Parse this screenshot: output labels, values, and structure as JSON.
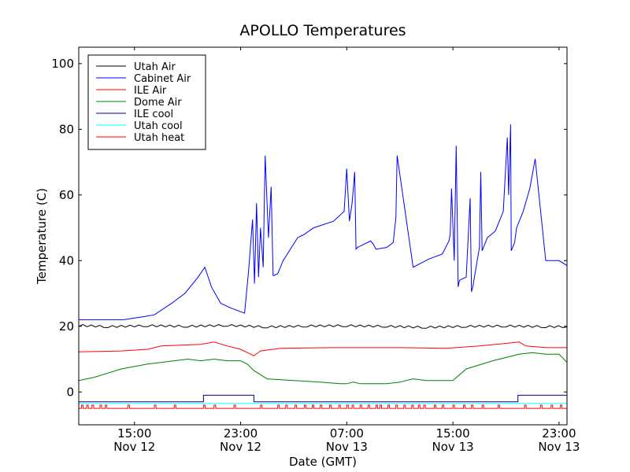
{
  "chart_data": {
    "type": "line",
    "title": "APOLLO Temperatures",
    "xlabel": "Date (GMT)",
    "ylabel": "Temperature (C)",
    "x_unit": "hours since Nov 12 00:00 GMT",
    "xlim": [
      10.8,
      47.6
    ],
    "ylim": [
      -10,
      105
    ],
    "yticks": [
      0,
      20,
      40,
      60,
      80,
      100
    ],
    "xticks": [
      {
        "value": 15,
        "time": "15:00",
        "date": "Nov 12"
      },
      {
        "value": 23,
        "time": "23:00",
        "date": "Nov 12"
      },
      {
        "value": 31,
        "time": "07:00",
        "date": "Nov 13"
      },
      {
        "value": 39,
        "time": "15:00",
        "date": "Nov 13"
      },
      {
        "value": 47,
        "time": "23:00",
        "date": "Nov 13"
      }
    ],
    "legend_position": "top-left",
    "series": [
      {
        "name": "Utah Air",
        "color": "#000000",
        "x": [
          10.8,
          13,
          16,
          19,
          22,
          25,
          28,
          31,
          34,
          37,
          40,
          43,
          46,
          47.6
        ],
        "y": [
          20.2,
          19.8,
          20.1,
          19.9,
          20.2,
          19.7,
          20.0,
          20.1,
          19.9,
          19.6,
          19.9,
          20.0,
          19.8,
          19.8
        ],
        "ripple": 0.4
      },
      {
        "name": "Cabinet Air",
        "color": "#0000ff",
        "x": [
          10.8,
          14.2,
          15.8,
          16.5,
          17.8,
          18.8,
          19.8,
          20.3,
          20.8,
          21.5,
          22.3,
          23.3,
          23.6,
          23.9,
          24.05,
          24.2,
          24.35,
          24.5,
          24.7,
          24.85,
          25.1,
          25.3,
          25.45,
          25.55,
          25.75,
          25.8,
          26.2,
          27.3,
          27.8,
          28.5,
          30.0,
          30.8,
          31.0,
          31.2,
          31.4,
          31.6,
          31.7,
          31.85,
          31.9,
          32.8,
          33.0,
          33.2,
          34.0,
          34.5,
          34.7,
          34.8,
          36.0,
          37.2,
          38.2,
          38.7,
          38.8,
          38.9,
          39.1,
          39.25,
          39.4,
          39.5,
          40.0,
          40.3,
          40.4,
          40.5,
          41.0,
          41.1,
          41.2,
          41.6,
          42.2,
          42.8,
          43.1,
          43.2,
          43.35,
          43.4,
          43.6,
          43.65,
          43.8,
          44.3,
          44.8,
          45.2,
          46.0,
          47.0,
          47.6
        ],
        "y": [
          22,
          22,
          23,
          23.5,
          27,
          30,
          35,
          38,
          32,
          27,
          25.5,
          24,
          37,
          52.5,
          33,
          57.5,
          35,
          50,
          38,
          72,
          47,
          62.5,
          35.5,
          35.5,
          36,
          36,
          40,
          47,
          48,
          50,
          52,
          55,
          68,
          52,
          57.5,
          67,
          43.5,
          44.2,
          44.2,
          46,
          45,
          43.5,
          44,
          45.5,
          53,
          72,
          38,
          40.5,
          42,
          46,
          48,
          62,
          40,
          75,
          32,
          34,
          35,
          59,
          30.5,
          32,
          44,
          67,
          43,
          47,
          49,
          55,
          77.5,
          60,
          81.5,
          43,
          45,
          45.5,
          50,
          55,
          62,
          71,
          40,
          40,
          38.5
        ]
      },
      {
        "name": "ILE Air",
        "color": "#ff0000",
        "x": [
          10.8,
          14,
          16,
          17,
          20,
          21,
          22,
          23,
          24,
          24.5,
          26,
          30,
          35,
          38.5,
          41,
          44,
          44.5,
          46,
          47.6
        ],
        "y": [
          12.2,
          12.5,
          13,
          14,
          14.5,
          15.2,
          14,
          13,
          11,
          12.5,
          13.3,
          13.5,
          13.5,
          13.3,
          14,
          15.2,
          14,
          13.5,
          13.5
        ]
      },
      {
        "name": "Dome Air",
        "color": "#008000",
        "x": [
          10.8,
          12,
          14,
          16,
          18,
          19,
          20,
          21,
          22,
          23,
          23.5,
          24,
          25,
          27,
          29,
          30.5,
          31,
          31.5,
          32,
          34,
          35,
          36,
          37,
          38,
          39,
          40,
          42,
          44,
          45,
          46,
          47,
          47.6
        ],
        "y": [
          3.5,
          4.5,
          7,
          8.5,
          9.5,
          10,
          9.5,
          10,
          9.5,
          9.5,
          8.5,
          6.5,
          4,
          3.5,
          3,
          2.5,
          2.5,
          3,
          2.5,
          2.5,
          3,
          4,
          3.5,
          3.5,
          3.5,
          7,
          9.5,
          11.5,
          12,
          11.5,
          11.5,
          9
        ]
      },
      {
        "name": "ILE cool",
        "color": "#000080",
        "x": [
          10.8,
          20.2,
          20.2,
          24.0,
          24.0,
          43.9,
          43.9,
          47.6
        ],
        "y": [
          -3,
          -3,
          -1,
          -1,
          -3,
          -3,
          -1,
          -1
        ]
      },
      {
        "name": "Utah cool",
        "color": "#00ffff",
        "x": [
          10.8,
          47.6
        ],
        "y": [
          -3.5,
          -3.5
        ]
      },
      {
        "name": "Utah heat",
        "color": "#ff0000",
        "x": [
          10.8,
          47.6
        ],
        "y": [
          -5,
          -5
        ],
        "pulse_high": -4,
        "pulse_x": [
          11.0,
          11.4,
          11.8,
          12.4,
          12.8,
          14.5,
          16.5,
          18.0,
          20.2,
          21.0,
          22.5,
          24.5,
          25.8,
          26.4,
          27.1,
          27.8,
          28.4,
          29.0,
          29.7,
          30.4,
          31.0,
          31.4,
          32.0,
          32.6,
          33.2,
          33.5,
          34.1,
          34.7,
          35.3,
          35.9,
          36.4,
          36.8,
          37.6,
          38.2,
          39.0,
          39.8,
          40.4,
          41.2,
          42.4,
          44.4,
          45.6,
          46.4,
          47.1
        ]
      }
    ]
  }
}
